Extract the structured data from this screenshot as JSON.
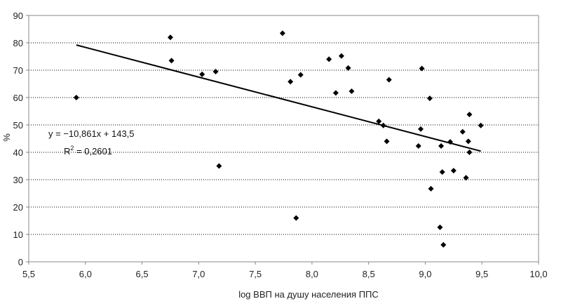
{
  "chart_data": {
    "type": "scatter",
    "title": "",
    "xlabel": "log ВВП на душу населения ППС",
    "ylabel": "%",
    "xlim": [
      5.5,
      10.0
    ],
    "ylim": [
      0,
      90
    ],
    "x_ticks": [
      "5,5",
      "6,0",
      "6,5",
      "7,0",
      "7,5",
      "8,0",
      "8,5",
      "9,0",
      "9,5",
      "10,0"
    ],
    "x_tick_values": [
      5.5,
      6.0,
      6.5,
      7.0,
      7.5,
      8.0,
      8.5,
      9.0,
      9.5,
      10.0
    ],
    "y_ticks": [
      "0",
      "10",
      "20",
      "30",
      "40",
      "50",
      "60",
      "70",
      "80",
      "90"
    ],
    "y_tick_values": [
      0,
      10,
      20,
      30,
      40,
      50,
      60,
      70,
      80,
      90
    ],
    "grid": "horizontal dotted",
    "legend": "none",
    "marker": "diamond",
    "marker_color": "#000000",
    "points": [
      {
        "x": 5.92,
        "y": 60.0
      },
      {
        "x": 6.75,
        "y": 82.0
      },
      {
        "x": 6.76,
        "y": 73.5
      },
      {
        "x": 7.03,
        "y": 68.5
      },
      {
        "x": 7.15,
        "y": 69.5
      },
      {
        "x": 7.18,
        "y": 35.0
      },
      {
        "x": 7.74,
        "y": 83.5
      },
      {
        "x": 7.81,
        "y": 65.8
      },
      {
        "x": 7.86,
        "y": 16.0
      },
      {
        "x": 7.9,
        "y": 68.3
      },
      {
        "x": 8.15,
        "y": 74.0
      },
      {
        "x": 8.21,
        "y": 61.7
      },
      {
        "x": 8.26,
        "y": 75.2
      },
      {
        "x": 8.32,
        "y": 70.8
      },
      {
        "x": 8.35,
        "y": 62.3
      },
      {
        "x": 8.59,
        "y": 51.3
      },
      {
        "x": 8.63,
        "y": 49.8
      },
      {
        "x": 8.66,
        "y": 44.0
      },
      {
        "x": 8.68,
        "y": 66.5
      },
      {
        "x": 8.94,
        "y": 42.3
      },
      {
        "x": 8.96,
        "y": 48.5
      },
      {
        "x": 8.97,
        "y": 70.6
      },
      {
        "x": 9.04,
        "y": 59.7
      },
      {
        "x": 9.05,
        "y": 26.7
      },
      {
        "x": 9.13,
        "y": 12.6
      },
      {
        "x": 9.14,
        "y": 42.3
      },
      {
        "x": 9.15,
        "y": 32.8
      },
      {
        "x": 9.16,
        "y": 6.2
      },
      {
        "x": 9.22,
        "y": 43.8
      },
      {
        "x": 9.25,
        "y": 33.3
      },
      {
        "x": 9.33,
        "y": 47.5
      },
      {
        "x": 9.36,
        "y": 30.7
      },
      {
        "x": 9.38,
        "y": 44.0
      },
      {
        "x": 9.39,
        "y": 53.8
      },
      {
        "x": 9.39,
        "y": 40.0
      },
      {
        "x": 9.49,
        "y": 49.8
      }
    ],
    "trendline": {
      "slope": -10.861,
      "intercept": 143.5,
      "x_start": 5.92,
      "x_end": 9.49,
      "equation_label": "y = −10,861x + 143,5",
      "r2_label_main": "R",
      "r2_label_sup": "2",
      "r2_label_value": " = 0,2601"
    }
  }
}
